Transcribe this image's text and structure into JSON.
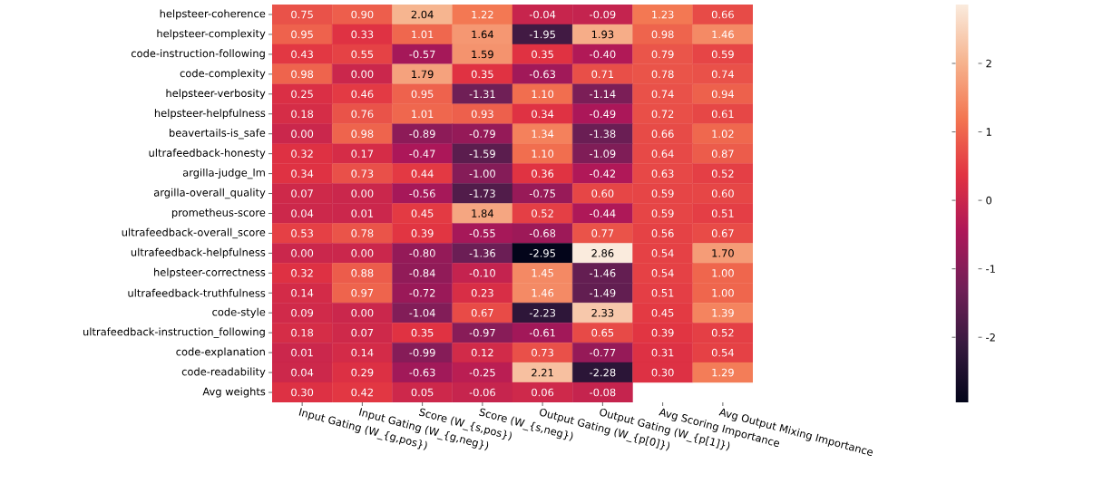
{
  "chart_data": {
    "type": "heatmap",
    "categories": [
      "Input Gating (W_{g,pos})",
      "Input Gating (W_{g,neg})",
      "Score (W_{s,pos})",
      "Score (W_{s,neg})",
      "Output Gating (W_{p[0]})",
      "Output Gating (W_{p[1]})",
      "Avg Scoring Importance",
      "Avg Output Mixing Importance"
    ],
    "y_categories": [
      "helpsteer-coherence",
      "helpsteer-complexity",
      "code-instruction-following",
      "code-complexity",
      "helpsteer-verbosity",
      "helpsteer-helpfulness",
      "beavertails-is_safe",
      "ultrafeedback-honesty",
      "argilla-judge_lm",
      "argilla-overall_quality",
      "prometheus-score",
      "ultrafeedback-overall_score",
      "ultrafeedback-helpfulness",
      "helpsteer-correctness",
      "ultrafeedback-truthfulness",
      "code-style",
      "ultrafeedback-instruction_following",
      "code-explanation",
      "code-readability",
      "Avg weights"
    ],
    "cells": [
      [
        0.75,
        0.9,
        2.04,
        1.22,
        -0.04,
        -0.09,
        1.23,
        0.66
      ],
      [
        0.95,
        0.33,
        1.01,
        1.64,
        -1.95,
        1.93,
        0.98,
        1.46
      ],
      [
        0.43,
        0.55,
        -0.57,
        1.59,
        0.35,
        -0.4,
        0.79,
        0.59
      ],
      [
        0.98,
        0.0,
        1.79,
        0.35,
        -0.63,
        0.71,
        0.78,
        0.74
      ],
      [
        0.25,
        0.46,
        0.95,
        -1.31,
        1.1,
        -1.14,
        0.74,
        0.94
      ],
      [
        0.18,
        0.76,
        1.01,
        0.93,
        0.34,
        -0.49,
        0.72,
        0.61
      ],
      [
        0.0,
        0.98,
        -0.89,
        -0.79,
        1.34,
        -1.38,
        0.66,
        1.02
      ],
      [
        0.32,
        0.17,
        -0.47,
        -1.59,
        1.1,
        -1.09,
        0.64,
        0.87
      ],
      [
        0.34,
        0.73,
        0.44,
        -1.0,
        0.36,
        -0.42,
        0.63,
        0.52
      ],
      [
        0.07,
        0.0,
        -0.56,
        -1.73,
        -0.75,
        0.6,
        0.59,
        0.6
      ],
      [
        0.04,
        0.01,
        0.45,
        1.84,
        0.52,
        -0.44,
        0.59,
        0.51
      ],
      [
        0.53,
        0.78,
        0.39,
        -0.55,
        -0.68,
        0.77,
        0.56,
        0.67
      ],
      [
        0.0,
        0.0,
        -0.8,
        -1.36,
        -2.95,
        2.86,
        0.54,
        1.7
      ],
      [
        0.32,
        0.88,
        -0.84,
        -0.1,
        1.45,
        -1.46,
        0.54,
        1.0
      ],
      [
        0.14,
        0.97,
        -0.72,
        0.23,
        1.46,
        -1.49,
        0.51,
        1.0
      ],
      [
        0.09,
        0.0,
        -1.04,
        0.67,
        -2.23,
        2.33,
        0.45,
        1.39
      ],
      [
        0.18,
        0.07,
        0.35,
        -0.97,
        -0.61,
        0.65,
        0.39,
        0.52
      ],
      [
        0.01,
        0.14,
        -0.99,
        0.12,
        0.73,
        -0.77,
        0.31,
        0.54
      ],
      [
        0.04,
        0.29,
        -0.63,
        -0.25,
        2.21,
        -2.28,
        0.3,
        1.29
      ],
      [
        0.3,
        0.42,
        0.05,
        -0.06,
        0.06,
        -0.08,
        null,
        null
      ]
    ],
    "cell_labels": [
      [
        "0.75",
        "0.90",
        "2.04",
        "1.22",
        "-0.04",
        "-0.09",
        "1.23",
        "0.66"
      ],
      [
        "0.95",
        "0.33",
        "1.01",
        "1.64",
        "-1.95",
        "1.93",
        "0.98",
        "1.46"
      ],
      [
        "0.43",
        "0.55",
        "-0.57",
        "1.59",
        "0.35",
        "-0.40",
        "0.79",
        "0.59"
      ],
      [
        "0.98",
        "0.00",
        "1.79",
        "0.35",
        "-0.63",
        "0.71",
        "0.78",
        "0.74"
      ],
      [
        "0.25",
        "0.46",
        "0.95",
        "-1.31",
        "1.10",
        "-1.14",
        "0.74",
        "0.94"
      ],
      [
        "0.18",
        "0.76",
        "1.01",
        "0.93",
        "0.34",
        "-0.49",
        "0.72",
        "0.61"
      ],
      [
        "0.00",
        "0.98",
        "-0.89",
        "-0.79",
        "1.34",
        "-1.38",
        "0.66",
        "1.02"
      ],
      [
        "0.32",
        "0.17",
        "-0.47",
        "-1.59",
        "1.10",
        "-1.09",
        "0.64",
        "0.87"
      ],
      [
        "0.34",
        "0.73",
        "0.44",
        "-1.00",
        "0.36",
        "-0.42",
        "0.63",
        "0.52"
      ],
      [
        "0.07",
        "0.00",
        "-0.56",
        "-1.73",
        "-0.75",
        "0.60",
        "0.59",
        "0.60"
      ],
      [
        "0.04",
        "0.01",
        "0.45",
        "1.84",
        "0.52",
        "-0.44",
        "0.59",
        "0.51"
      ],
      [
        "0.53",
        "0.78",
        "0.39",
        "-0.55",
        "-0.68",
        "0.77",
        "0.56",
        "0.67"
      ],
      [
        "0.00",
        "0.00",
        "-0.80",
        "-1.36",
        "-2.95",
        "2.86",
        "0.54",
        "1.70"
      ],
      [
        "0.32",
        "0.88",
        "-0.84",
        "-0.10",
        "1.45",
        "-1.46",
        "0.54",
        "1.00"
      ],
      [
        "0.14",
        "0.97",
        "-0.72",
        "0.23",
        "1.46",
        "-1.49",
        "0.51",
        "1.00"
      ],
      [
        "0.09",
        "0.00",
        "-1.04",
        "0.67",
        "-2.23",
        "2.33",
        "0.45",
        "1.39"
      ],
      [
        "0.18",
        "0.07",
        "0.35",
        "-0.97",
        "-0.61",
        "0.65",
        "0.39",
        "0.52"
      ],
      [
        "0.01",
        "0.14",
        "-0.99",
        "0.12",
        "0.73",
        "-0.77",
        "0.31",
        "0.54"
      ],
      [
        "0.04",
        "0.29",
        "-0.63",
        "-0.25",
        "2.21",
        "-2.28",
        "0.30",
        "1.29"
      ],
      [
        "0.30",
        "0.42",
        "0.05",
        "-0.06",
        "0.06",
        "-0.08",
        null,
        null
      ]
    ],
    "clim": [
      -2.95,
      2.86
    ],
    "cticks": [
      -2,
      -1,
      0,
      1,
      2
    ]
  }
}
